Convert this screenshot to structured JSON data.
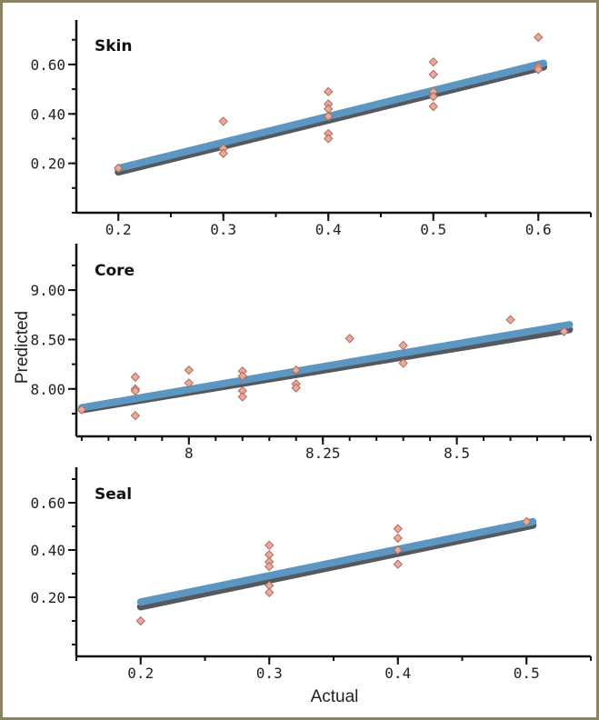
{
  "chart_data": [
    {
      "type": "scatter",
      "title": "Skin",
      "xlim": [
        0.16,
        0.65
      ],
      "ylim": [
        0.0,
        0.78
      ],
      "x_ticks": [
        0.2,
        0.3,
        0.4,
        0.5,
        0.6
      ],
      "x_tick_labels": [
        "0.2",
        "0.3",
        "0.4",
        "0.5",
        "0.6"
      ],
      "y_ticks": [
        0.2,
        0.4,
        0.6
      ],
      "y_tick_labels": [
        "0.20",
        "0.40",
        "0.60"
      ],
      "x_minor_step": 0.05,
      "y_minor_step": 0.1,
      "points": [
        [
          0.2,
          0.18
        ],
        [
          0.3,
          0.37
        ],
        [
          0.3,
          0.26
        ],
        [
          0.3,
          0.24
        ],
        [
          0.4,
          0.49
        ],
        [
          0.4,
          0.44
        ],
        [
          0.4,
          0.42
        ],
        [
          0.4,
          0.39
        ],
        [
          0.4,
          0.32
        ],
        [
          0.4,
          0.3
        ],
        [
          0.5,
          0.61
        ],
        [
          0.5,
          0.56
        ],
        [
          0.5,
          0.49
        ],
        [
          0.5,
          0.47
        ],
        [
          0.5,
          0.43
        ],
        [
          0.6,
          0.71
        ],
        [
          0.6,
          0.59
        ],
        [
          0.6,
          0.58
        ]
      ],
      "fit_lines": [
        {
          "color": "#55595e",
          "from": [
            0.2,
            0.165
          ],
          "to": [
            0.605,
            0.59
          ]
        },
        {
          "color": "#5b97c0",
          "from": [
            0.2,
            0.18
          ],
          "to": [
            0.605,
            0.605
          ]
        }
      ]
    },
    {
      "type": "scatter",
      "title": "Core",
      "xlim": [
        7.79,
        8.75
      ],
      "ylim": [
        7.52,
        9.47
      ],
      "x_ticks": [
        8.0,
        8.25,
        8.5
      ],
      "x_tick_labels": [
        "8",
        "8.25",
        "8.5"
      ],
      "y_ticks": [
        8.0,
        8.5,
        9.0
      ],
      "y_tick_labels": [
        "8.00",
        "8.50",
        "9.00"
      ],
      "x_minor_step": 0.05,
      "y_minor_step": 0.25,
      "points": [
        [
          7.8,
          7.79
        ],
        [
          7.9,
          8.12
        ],
        [
          7.9,
          8.0
        ],
        [
          7.9,
          7.98
        ],
        [
          7.9,
          7.73
        ],
        [
          8.0,
          8.19
        ],
        [
          8.0,
          8.06
        ],
        [
          8.1,
          8.18
        ],
        [
          8.1,
          8.13
        ],
        [
          8.1,
          7.98
        ],
        [
          8.1,
          7.92
        ],
        [
          8.2,
          8.19
        ],
        [
          8.2,
          8.05
        ],
        [
          8.2,
          8.01
        ],
        [
          8.3,
          8.51
        ],
        [
          8.4,
          8.44
        ],
        [
          8.4,
          8.26
        ],
        [
          8.6,
          8.7
        ],
        [
          8.7,
          8.58
        ]
      ],
      "fit_lines": [
        {
          "color": "#55595e",
          "from": [
            7.8,
            7.79
          ],
          "to": [
            8.71,
            8.6
          ]
        },
        {
          "color": "#5b97c0",
          "from": [
            7.8,
            7.81
          ],
          "to": [
            8.71,
            8.65
          ]
        }
      ]
    },
    {
      "type": "scatter",
      "title": "Seal",
      "xlabel": "Actual",
      "xlim": [
        0.15,
        0.55
      ],
      "ylim": [
        -0.05,
        0.75
      ],
      "x_ticks": [
        0.2,
        0.3,
        0.4,
        0.5
      ],
      "x_tick_labels": [
        "0.2",
        "0.3",
        "0.4",
        "0.5"
      ],
      "y_ticks": [
        0.2,
        0.4,
        0.6
      ],
      "y_tick_labels": [
        "0.20",
        "0.40",
        "0.60"
      ],
      "x_minor_step": 0.05,
      "y_minor_step": 0.1,
      "points": [
        [
          0.2,
          0.1
        ],
        [
          0.3,
          0.42
        ],
        [
          0.3,
          0.38
        ],
        [
          0.3,
          0.35
        ],
        [
          0.3,
          0.33
        ],
        [
          0.3,
          0.25
        ],
        [
          0.3,
          0.22
        ],
        [
          0.4,
          0.49
        ],
        [
          0.4,
          0.45
        ],
        [
          0.4,
          0.4
        ],
        [
          0.4,
          0.34
        ],
        [
          0.5,
          0.52
        ]
      ],
      "fit_lines": [
        {
          "color": "#55595e",
          "from": [
            0.2,
            0.16
          ],
          "to": [
            0.505,
            0.505
          ]
        },
        {
          "color": "#5b97c0",
          "from": [
            0.2,
            0.18
          ],
          "to": [
            0.505,
            0.52
          ]
        }
      ]
    }
  ],
  "ylabel": "Predicted",
  "colors": {
    "frame": "#8a8262",
    "point_fill": "#e8aa9a",
    "point_stroke": "#b06a5c"
  }
}
